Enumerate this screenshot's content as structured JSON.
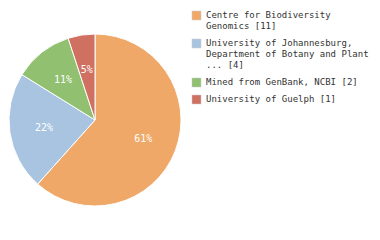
{
  "chart_data": {
    "type": "pie",
    "categories": [
      "Centre for Biodiversity\nGenomics [11]",
      "University of Johannesburg,\nDepartment of Botany and Plant\n... [4]",
      "Mined from GenBank, NCBI [2]",
      "University of Guelph [1]"
    ],
    "values": [
      61,
      22,
      11,
      5
    ],
    "value_labels": [
      "61%",
      "22%",
      "11%",
      "5%"
    ],
    "colors": [
      "#f0a868",
      "#a8c4e0",
      "#90c070",
      "#d07060"
    ],
    "data_labels": true,
    "legend": "right"
  }
}
